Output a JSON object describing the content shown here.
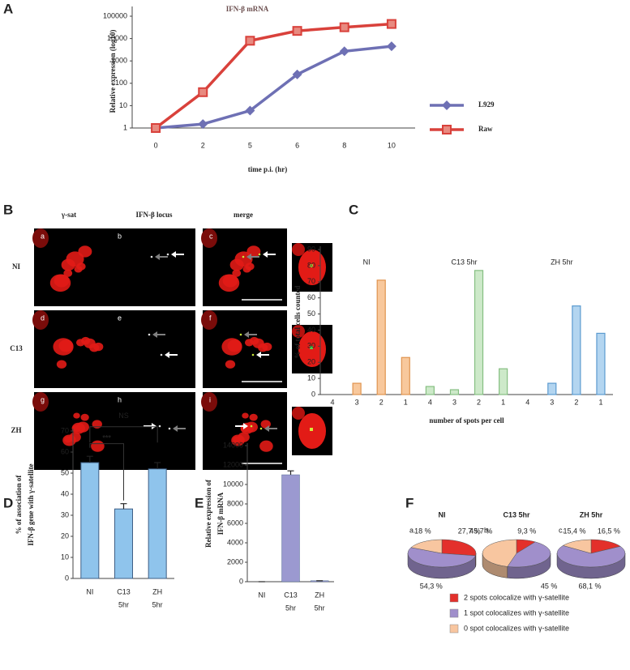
{
  "figure": {
    "panels": [
      "A",
      "B",
      "C",
      "D",
      "E",
      "F"
    ],
    "microscopy": {
      "columns": [
        "γ-sat",
        "IFN-β locus",
        "merge"
      ],
      "rows": [
        "NI",
        "C13",
        "ZH"
      ],
      "images": [
        "a",
        "b",
        "c",
        "d",
        "e",
        "f",
        "g",
        "h",
        "i"
      ]
    }
  },
  "chart_data": [
    {
      "type": "line",
      "title": "IFN-β mRNA",
      "ylabel": "Relative expression (log10)",
      "xlabel": "time p.i. (hr)",
      "categories": [
        "0",
        "2",
        "5",
        "6",
        "8",
        "10"
      ],
      "log_scale": true,
      "ylim": [
        1,
        100000
      ],
      "yticks": [
        1,
        10,
        100,
        1000,
        10000,
        100000
      ],
      "legend": "right",
      "series": [
        {
          "name": "L929",
          "color": "#6e70b4",
          "marker": "diamond",
          "values": [
            1,
            1.5,
            6,
            250,
            2700,
            4500
          ]
        },
        {
          "name": "Raw",
          "color": "#d9413b",
          "marker": "square",
          "values": [
            1,
            40,
            8000,
            22000,
            32000,
            45000
          ]
        }
      ]
    },
    {
      "type": "bar",
      "ylabel": "% of total cells counted",
      "xlabel": "number of spots per cell",
      "categories": [
        "4",
        "3",
        "2",
        "1"
      ],
      "ylim": [
        0,
        90
      ],
      "yticks": [
        0,
        10,
        20,
        30,
        40,
        50,
        60,
        70,
        80,
        90
      ],
      "series": [
        {
          "name": "NI",
          "color": "#f8c89c",
          "edgecolor": "#e0944f",
          "values": [
            0,
            7,
            71,
            23
          ]
        },
        {
          "name": "C13 5hr",
          "color": "#cde9c9",
          "edgecolor": "#86bf82",
          "values": [
            5,
            3,
            77,
            16
          ]
        },
        {
          "name": "ZH 5hr",
          "color": "#b3d5f0",
          "edgecolor": "#5c9bd0",
          "values": [
            0,
            7,
            55,
            38
          ]
        }
      ]
    },
    {
      "type": "bar",
      "ylabel": [
        "% of association of",
        "IFN-β gene with γ-satellite"
      ],
      "categories": [
        [
          "NI"
        ],
        [
          "C13",
          "5hr"
        ],
        [
          "ZH",
          "5hr"
        ]
      ],
      "values": [
        55,
        33,
        52
      ],
      "errors": [
        3,
        2.5,
        3
      ],
      "color": "#8fc4ec",
      "ylim": [
        0,
        70
      ],
      "yticks": [
        0,
        10,
        20,
        30,
        40,
        50,
        60,
        70
      ],
      "annotations": [
        "***",
        "NS"
      ]
    },
    {
      "type": "bar",
      "ylabel": [
        "Relative expression of",
        "IFN-β mRNA"
      ],
      "categories": [
        [
          "NI"
        ],
        [
          "C13",
          "5hr"
        ],
        [
          "ZH",
          "5hr"
        ]
      ],
      "values": [
        0,
        11000,
        100
      ],
      "errors": [
        0,
        400,
        0
      ],
      "color": "#9b99d0",
      "ylim": [
        0,
        14000
      ],
      "yticks": [
        0,
        2000,
        4000,
        6000,
        8000,
        10000,
        12000,
        14000
      ]
    },
    {
      "type": "pie",
      "labels": [
        "2 spots colocalize with γ-satellite",
        "1 spot colocalizes with γ-satellite",
        "0 spot colocalizes with γ-satellite"
      ],
      "colors": [
        "#e3302b",
        "#a08fcb",
        "#f8c6a0"
      ],
      "pies": [
        {
          "title": "NI",
          "tag": "a.",
          "values": [
            27.7,
            54.3,
            18
          ],
          "value_labels": [
            "27,7 %",
            "54,3 %",
            "18 %"
          ]
        },
        {
          "title": "C13 5hr",
          "tag": "b.",
          "values": [
            9.3,
            45,
            45.7
          ],
          "value_labels": [
            "9,3 %",
            "45 %",
            "45,7 %"
          ]
        },
        {
          "title": "ZH 5hr",
          "tag": "c.",
          "values": [
            16.5,
            68.1,
            15.4
          ],
          "value_labels": [
            "16,5 %",
            "68,1 %",
            "15,4 %"
          ]
        }
      ]
    }
  ]
}
